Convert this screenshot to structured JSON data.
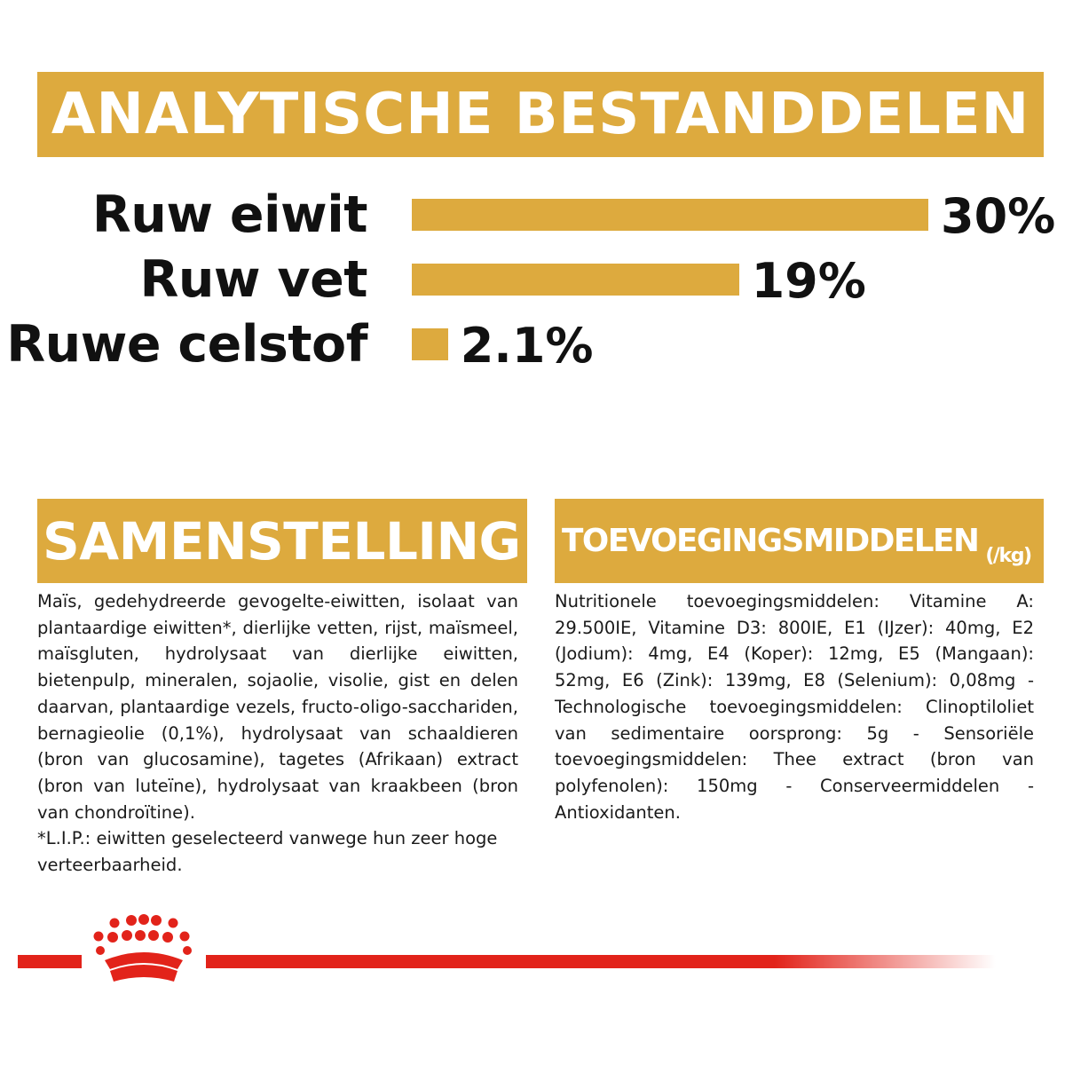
{
  "header": {
    "title": "ANALYTISCHE BESTANDDELEN"
  },
  "chart_data": {
    "type": "bar",
    "orientation": "horizontal",
    "categories": [
      "Ruw eiwit",
      "Ruw vet",
      "Ruwe celstof"
    ],
    "values": [
      30,
      19,
      2.1
    ],
    "value_labels": [
      "30%",
      "19%",
      "2.1%"
    ],
    "unit": "%",
    "xlim": [
      0,
      30
    ],
    "grid": false,
    "bar_color": "#ddaa3e"
  },
  "composition": {
    "title": "SAMENSTELLING",
    "text": "Maïs, gedehydreerde gevogelte-eiwitten, isolaat van plantaardige eiwitten*, dierlijke vetten, rijst, maïsmeel, maïsgluten, hydrolysaat van dierlijke eiwitten, bietenpulp, mineralen, sojaolie, visolie, gist en delen daarvan, plantaardige vezels, fructo-oligo-sacchariden, bernagieolie (0,1%), hydrolysaat van schaaldieren (bron van glucosamine), tagetes (Afrikaan) extract (bron van luteïne), hydrolysaat van kraakbeen (bron van chondroïtine).",
    "note": "*L.I.P.: eiwitten geselecteerd vanwege hun zeer hoge verteerbaarheid."
  },
  "additives": {
    "title": "TOEVOEGINGSMIDDELEN",
    "unit": "(/kg)",
    "text": "Nutritionele toevoegingsmiddelen: Vitamine A: 29.500IE, Vitamine D3: 800IE, E1 (IJzer): 40mg, E2 (Jodium): 4mg, E4 (Koper): 12mg, E5 (Mangaan): 52mg, E6 (Zink): 139mg, E8 (Selenium): 0,08mg - Technologische toevoegingsmiddelen: Clinoptiloliet van sedimentaire oorsprong: 5g - Sensoriële toevoegingsmiddelen: Thee extract (bron van polyfenolen): 150mg - Conserveermiddelen - Antioxidanten."
  },
  "colors": {
    "accent": "#ddaa3e",
    "brand_red": "#e2231a"
  },
  "logo": {
    "icon": "crown-icon"
  }
}
